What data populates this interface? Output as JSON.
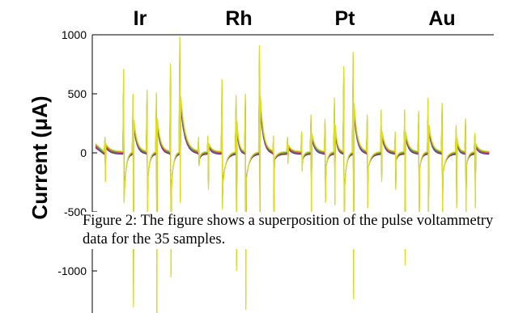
{
  "chart_data": {
    "type": "line",
    "title": "",
    "xlabel": "",
    "ylabel": "Current (μA)",
    "ylim": [
      -1300,
      1000
    ],
    "yticks": [
      1000,
      500,
      0,
      -500,
      -1000
    ],
    "group_labels": [
      "Ir",
      "Rh",
      "Pt",
      "Au"
    ],
    "series_colors": [
      "#2222dd",
      "#dd2222",
      "#22aa22",
      "#aa22cc",
      "#ff8800",
      "#00aaaa",
      "#dddd22"
    ],
    "x_range": [
      0,
      42
    ],
    "pulses": [
      {
        "x": 1,
        "up": 120,
        "down": -220,
        "decay": 60
      },
      {
        "x": 3,
        "up": 640,
        "down": -380,
        "decay": 330
      },
      {
        "x": 4,
        "up": 450,
        "down": -1180,
        "decay": 240
      },
      {
        "x": 5.5,
        "up": 480,
        "down": -500,
        "decay": 230
      },
      {
        "x": 6.5,
        "up": 460,
        "down": -1280,
        "decay": 250
      },
      {
        "x": 8,
        "up": 680,
        "down": -950,
        "decay": 330
      },
      {
        "x": 9,
        "up": 890,
        "down": -380,
        "decay": 420
      },
      {
        "x": 11,
        "up": 120,
        "down": -100,
        "decay": 50
      },
      {
        "x": 12,
        "up": 130,
        "down": -280,
        "decay": 60
      },
      {
        "x": 13.5,
        "up": 560,
        "down": -430,
        "decay": 270
      },
      {
        "x": 15,
        "up": 440,
        "down": -900,
        "decay": 230
      },
      {
        "x": 16,
        "up": 450,
        "down": -1200,
        "decay": 240
      },
      {
        "x": 17.5,
        "up": 820,
        "down": -590,
        "decay": 420
      },
      {
        "x": 19,
        "up": 130,
        "down": -560,
        "decay": 60
      },
      {
        "x": 20.5,
        "up": 120,
        "down": -80,
        "decay": 50
      },
      {
        "x": 22,
        "up": 160,
        "down": -140,
        "decay": 60
      },
      {
        "x": 23,
        "up": 290,
        "down": -480,
        "decay": 140
      },
      {
        "x": 24.5,
        "up": 260,
        "down": -380,
        "decay": 140
      },
      {
        "x": 25.5,
        "up": 420,
        "down": -400,
        "decay": 200
      },
      {
        "x": 26.5,
        "up": 660,
        "down": -720,
        "decay": 310
      },
      {
        "x": 27.5,
        "up": 770,
        "down": -1120,
        "decay": 370
      },
      {
        "x": 29,
        "up": 290,
        "down": -420,
        "decay": 140
      },
      {
        "x": 30.5,
        "up": 330,
        "down": -220,
        "decay": 150
      },
      {
        "x": 32,
        "up": 160,
        "down": -280,
        "decay": 60
      },
      {
        "x": 33,
        "up": 330,
        "down": -860,
        "decay": 150
      },
      {
        "x": 34.5,
        "up": 320,
        "down": -680,
        "decay": 150
      },
      {
        "x": 35.5,
        "up": 420,
        "down": -520,
        "decay": 200
      },
      {
        "x": 37,
        "up": 380,
        "down": -520,
        "decay": 180
      },
      {
        "x": 38.5,
        "up": 210,
        "down": -420,
        "decay": 100
      },
      {
        "x": 39.5,
        "up": 260,
        "down": -520,
        "decay": 120
      },
      {
        "x": 40.5,
        "up": 150,
        "down": -420,
        "decay": 60
      }
    ]
  },
  "caption": "Figure 2: The figure shows a superposition of the pulse voltammetry data for the 35 samples."
}
